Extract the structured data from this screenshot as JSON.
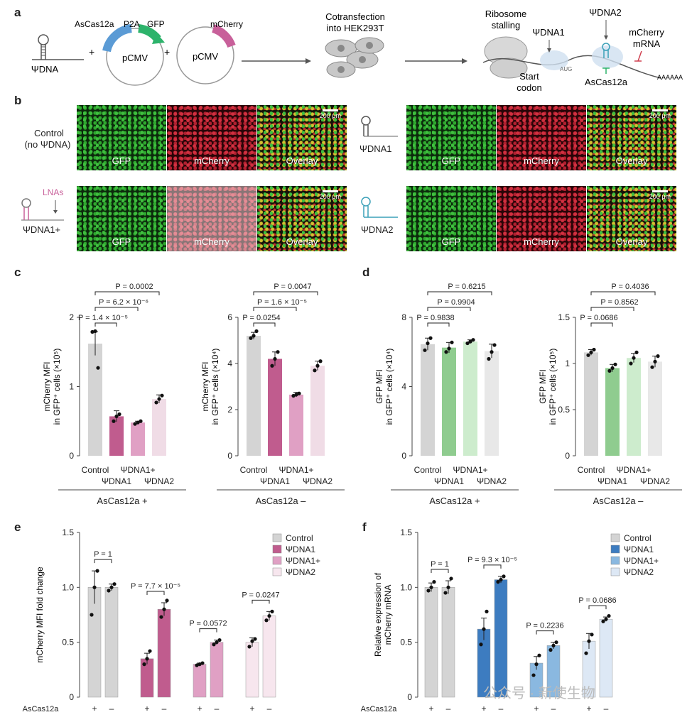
{
  "panel_letters": {
    "a": "a",
    "b": "b",
    "c": "c",
    "d": "d",
    "e": "e",
    "f": "f"
  },
  "panel_a": {
    "psi_dna": "ΨDNA",
    "ascas": "AsCas12a",
    "p2a": "P2A",
    "gfp": "GFP",
    "pcmv1": "pCMV",
    "mcherry": "mCherry",
    "pcmv2": "pCMV",
    "plus1": "+",
    "plus2": "+",
    "cotrans1": "Cotransfection",
    "cotrans2": "into HEK293T",
    "ribo1": "Ribosome",
    "ribo2": "stalling",
    "psi1": "ΨDNA1",
    "psi2": "ΨDNA2",
    "mch_mrna1": "mCherry",
    "mch_mrna2": "mRNA",
    "start1": "Start",
    "start2": "codon",
    "aug": "AUG",
    "ascas2": "AsCas12a",
    "polya": "AAAAAA",
    "colors": {
      "blue": "#5b9bd5",
      "green": "#2db36b",
      "pink": "#c8609a"
    }
  },
  "panel_b": {
    "rows": [
      {
        "label1": "Control",
        "label2": "(no ΨDNA)"
      },
      {
        "label1": "ΨDNA1"
      },
      {
        "label1": "ΨDNA1+",
        "lnas": "LNAs"
      },
      {
        "label1": "ΨDNA2"
      }
    ],
    "channels": [
      "GFP",
      "mCherry",
      "Overlay"
    ],
    "scale": "200 μm"
  },
  "xcats": [
    "Control",
    "ΨDNA1",
    "ΨDNA1+",
    "ΨDNA2"
  ],
  "chart_data": [
    {
      "id": "c1",
      "type": "bar",
      "ylabel1": "mCherry MFI",
      "ylabel2": "in GFP⁺ cells (×10⁵)",
      "yticks": [
        "0",
        "1",
        "2"
      ],
      "ylim": [
        0,
        2
      ],
      "values": [
        1.62,
        0.57,
        0.48,
        0.82
      ],
      "errors": [
        0.17,
        0.08,
        0.02,
        0.06
      ],
      "points": [
        [
          1.79,
          1.8,
          1.27
        ],
        [
          0.5,
          0.57,
          0.6
        ],
        [
          0.46,
          0.48,
          0.5
        ],
        [
          0.77,
          0.82,
          0.87
        ]
      ],
      "colors": [
        "#d4d4d4",
        "#c05c8e",
        "#e0a0c4",
        "#f0dce6"
      ],
      "group": "AsCas12a +",
      "pvals": [
        "P = 1.4 × 10⁻⁵",
        "P = 6.2 × 10⁻⁶",
        "P = 0.0002"
      ]
    },
    {
      "id": "c2",
      "type": "bar",
      "ylabel1": "mCherry MFI",
      "ylabel2": "in GFP⁺ cells (×10⁴)",
      "yticks": [
        "0",
        "2",
        "4",
        "6"
      ],
      "ylim": [
        0,
        6
      ],
      "values": [
        5.2,
        4.2,
        2.65,
        3.9
      ],
      "errors": [
        0.15,
        0.3,
        0.1,
        0.2
      ],
      "points": [
        [
          5.1,
          5.2,
          5.4
        ],
        [
          3.9,
          4.2,
          4.5
        ],
        [
          2.6,
          2.65,
          2.7
        ],
        [
          3.7,
          3.9,
          4.1
        ]
      ],
      "colors": [
        "#d4d4d4",
        "#c05c8e",
        "#e0a0c4",
        "#f0dce6"
      ],
      "group": "AsCas12a –",
      "pvals": [
        "P = 0.0254",
        "P = 1.6 × 10⁻⁵",
        "P = 0.0047"
      ]
    },
    {
      "id": "d1",
      "type": "bar",
      "ylabel1": "GFP MFI",
      "ylabel2": "in GFP⁺ cells (×10⁴)",
      "yticks": [
        "0",
        "4",
        "8"
      ],
      "ylim": [
        0,
        8
      ],
      "values": [
        6.45,
        6.25,
        6.6,
        6.05
      ],
      "errors": [
        0.35,
        0.3,
        0.1,
        0.4
      ],
      "points": [
        [
          6.1,
          6.5,
          6.8
        ],
        [
          6.0,
          6.2,
          6.55
        ],
        [
          6.5,
          6.6,
          6.7
        ],
        [
          5.6,
          6.0,
          6.4
        ]
      ],
      "colors": [
        "#d4d4d4",
        "#8fcc8f",
        "#cdeccd",
        "#e8e8e8"
      ],
      "group": "AsCas12a +",
      "pvals": [
        "P = 0.9838",
        "P = 0.9904",
        "P = 0.6215"
      ]
    },
    {
      "id": "d2",
      "type": "bar",
      "ylabel1": "GFP MFI",
      "ylabel2": "in GFP⁺ cells (×10⁵)",
      "yticks": [
        "0",
        "0.5",
        "1",
        "1.5"
      ],
      "ylim": [
        0,
        1.5
      ],
      "values": [
        1.12,
        0.95,
        1.06,
        1.02
      ],
      "errors": [
        0.03,
        0.04,
        0.05,
        0.06
      ],
      "points": [
        [
          1.09,
          1.12,
          1.15
        ],
        [
          0.92,
          0.95,
          0.99
        ],
        [
          1.0,
          1.06,
          1.12
        ],
        [
          0.96,
          1.02,
          1.08
        ]
      ],
      "colors": [
        "#d4d4d4",
        "#8fcc8f",
        "#cdeccd",
        "#e8e8e8"
      ],
      "group": "AsCas12a –",
      "pvals": [
        "P = 0.0686",
        "P = 0.8562",
        "P = 0.4036"
      ]
    },
    {
      "id": "e",
      "type": "bar",
      "ylabel1": "mCherry MFI fold change",
      "yticks": [
        "0",
        "0.5",
        "1.0",
        "1.5"
      ],
      "ylim": [
        0,
        1.5
      ],
      "legend": [
        "Control",
        "ΨDNA1",
        "ΨDNA1+",
        "ΨDNA2"
      ],
      "legend_colors": [
        "#d4d4d4",
        "#c05c8e",
        "#e0a0c4",
        "#f7e6ee"
      ],
      "pairs": [
        [
          1.0,
          1.0
        ],
        [
          0.35,
          0.8
        ],
        [
          0.3,
          0.5
        ],
        [
          0.5,
          0.74
        ]
      ],
      "perr": [
        [
          0.15,
          0.03
        ],
        [
          0.05,
          0.06
        ],
        [
          0.01,
          0.02
        ],
        [
          0.04,
          0.04
        ]
      ],
      "ppoints": [
        [
          [
            0.75,
            1.0,
            1.15
          ],
          [
            0.97,
            1.0,
            1.03
          ]
        ],
        [
          [
            0.3,
            0.35,
            0.42
          ],
          [
            0.73,
            0.8,
            0.88
          ]
        ],
        [
          [
            0.29,
            0.3,
            0.31
          ],
          [
            0.48,
            0.5,
            0.52
          ]
        ],
        [
          [
            0.46,
            0.51,
            0.53
          ],
          [
            0.7,
            0.74,
            0.78
          ]
        ]
      ],
      "pvals": [
        "P = 1",
        "P = 7.7 × 10⁻⁵",
        "P = 0.0572",
        "P = 0.0247"
      ],
      "cas_label": "AsCas12a",
      "signs": [
        "+",
        "–"
      ]
    },
    {
      "id": "f",
      "type": "bar",
      "ylabel1": "Relative expression of",
      "ylabel2": "mCherry mRNA",
      "yticks": [
        "0",
        "0.5",
        "1.0",
        "1.5"
      ],
      "ylim": [
        0,
        1.5
      ],
      "legend": [
        "Control",
        "ΨDNA1",
        "ΨDNA1+",
        "ΨDNA2"
      ],
      "legend_colors": [
        "#d4d4d4",
        "#3d7cc0",
        "#8ab8e0",
        "#dde8f5"
      ],
      "pairs": [
        [
          1.0,
          1.0
        ],
        [
          0.62,
          1.07
        ],
        [
          0.31,
          0.47
        ],
        [
          0.51,
          0.71
        ]
      ],
      "perr": [
        [
          0.04,
          0.06
        ],
        [
          0.1,
          0.03
        ],
        [
          0.06,
          0.03
        ],
        [
          0.07,
          0.02
        ]
      ],
      "ppoints": [
        [
          [
            0.97,
            1.0,
            1.05
          ],
          [
            0.95,
            1.0,
            1.08
          ]
        ],
        [
          [
            0.48,
            0.62,
            0.78
          ],
          [
            1.05,
            1.07,
            1.1
          ]
        ],
        [
          [
            0.2,
            0.3,
            0.38
          ],
          [
            0.43,
            0.47,
            0.5
          ]
        ],
        [
          [
            0.4,
            0.51,
            0.57
          ],
          [
            0.69,
            0.71,
            0.74
          ]
        ]
      ],
      "pvals": [
        "P = 1",
        "P = 9.3 × 10⁻⁵",
        "P = 0.2236",
        "P = 0.0686"
      ],
      "cas_label": "AsCas12a",
      "signs": [
        "+",
        "–"
      ]
    }
  ],
  "watermark": "公众号 · 新使生物"
}
